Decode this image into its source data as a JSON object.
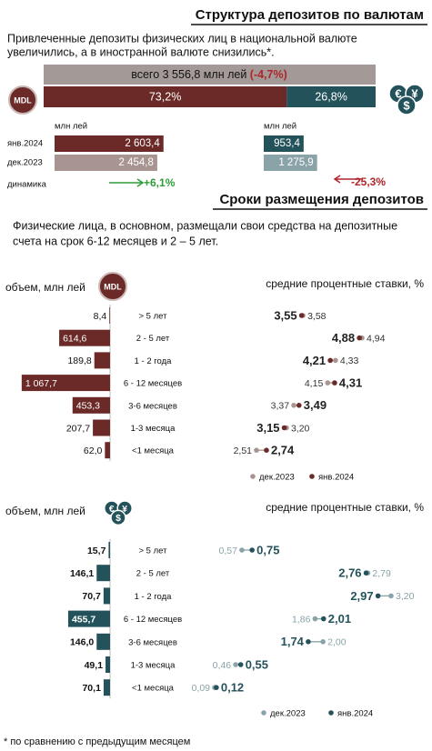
{
  "header": {
    "title": "Структура депозитов по валютам",
    "text": [
      "Привлеченные депозиты физических лиц в национальной валюте",
      "увеличились, а в иностранной валюте снизились*."
    ]
  },
  "total": {
    "label": "всего 3 556,8 млн лей",
    "change": "(-4,7%)",
    "shares": [
      {
        "value": 73.2,
        "label": "73,2%",
        "color": "#6b2a27"
      },
      {
        "value": 26.8,
        "label": "26,8%",
        "color": "#24525b"
      }
    ]
  },
  "icons": {
    "mdl": "MDL",
    "fx": [
      "€",
      "¥",
      "$"
    ]
  },
  "currency": {
    "row_labels": [
      "янв.2024",
      "дек.2023"
    ],
    "dynamics_label": "динамика",
    "groups": [
      {
        "unit": "млн лей",
        "values": [
          2603.4,
          2454.8
        ],
        "value_labels": [
          "2 603,4",
          "2 454,8"
        ],
        "colors": [
          "#6b2a27",
          "#a89490"
        ],
        "change": "+6,1%",
        "change_color": "#2e9b3a"
      },
      {
        "unit": "млн лей",
        "values": [
          953.4,
          1275.9
        ],
        "value_labels": [
          "953,4",
          "1 275,9"
        ],
        "colors": [
          "#24525b",
          "#8aa3a8"
        ],
        "change": "-25,3%",
        "change_color": "#b0242a"
      }
    ]
  },
  "terms": {
    "title": "Сроки размещения депозитов",
    "text": [
      "Физические лица, в основном, размещали свои средства на депозитные",
      "счета на срок 6-12 месяцев и 2 – 5 лет."
    ],
    "volume_label": "объем, млн лей",
    "rate_label": "средние процентные ставки, %",
    "charts": [
      {
        "icon": "mdl",
        "categories": [
          "> 5 лет",
          "2 - 5 лет",
          "1 - 2 года",
          "6 - 12 месяцев",
          "3-6 месяцев",
          "1-3 месяца",
          "<1 месяца"
        ],
        "volumes": [
          8.4,
          614.6,
          189.8,
          1067.7,
          453.3,
          207.7,
          62.0
        ],
        "volume_labels": [
          "8,4",
          "614,6",
          "189,8",
          "1 067,7",
          "453,3",
          "207,7",
          "62,0"
        ],
        "bar_color": "#6b2a27",
        "series": [
          {
            "name": "дек.2023",
            "color": "#a89490",
            "values": [
              3.58,
              4.94,
              4.33,
              4.15,
              3.37,
              3.2,
              2.51
            ],
            "value_labels": [
              "3,58",
              "4,94",
              "4,33",
              "4,15",
              "3,37",
              "3,20",
              "2,51"
            ]
          },
          {
            "name": "янв.2024",
            "color": "#6b2a27",
            "values": [
              3.55,
              4.88,
              4.21,
              4.31,
              3.49,
              3.15,
              2.74
            ],
            "value_labels": [
              "3,55",
              "4,88",
              "4,21",
              "4,31",
              "3,49",
              "3,15",
              "2,74"
            ]
          }
        ]
      },
      {
        "icon": "fx",
        "categories": [
          "> 5 лет",
          "2 - 5 лет",
          "1 - 2 года",
          "6 - 12 месяцев",
          "3-6 месяцев",
          "1-3 месяца",
          "<1 месяца"
        ],
        "volumes": [
          15.7,
          146.1,
          70.7,
          455.7,
          146.0,
          49.1,
          70.1
        ],
        "volume_labels": [
          "15,7",
          "146,1",
          "70,7",
          "455,7",
          "146,0",
          "49,1",
          "70,1"
        ],
        "bar_color": "#24525b",
        "series": [
          {
            "name": "дек.2023",
            "color": "#8aa3a8",
            "values": [
              0.57,
              2.79,
              3.2,
              1.86,
              2.0,
              0.46,
              0.09
            ],
            "value_labels": [
              "0,57",
              "2,79",
              "3,20",
              "1,86",
              "2,00",
              "0,46",
              "0,09"
            ]
          },
          {
            "name": "янв.2024",
            "color": "#24525b",
            "values": [
              0.75,
              2.76,
              2.97,
              2.01,
              1.74,
              0.55,
              0.12
            ],
            "value_labels": [
              "0,75",
              "2,76",
              "2,97",
              "2,01",
              "1,74",
              "0,55",
              "0,12"
            ]
          }
        ]
      }
    ]
  },
  "footnote": "* по сравнению с предыдущим месяцем"
}
